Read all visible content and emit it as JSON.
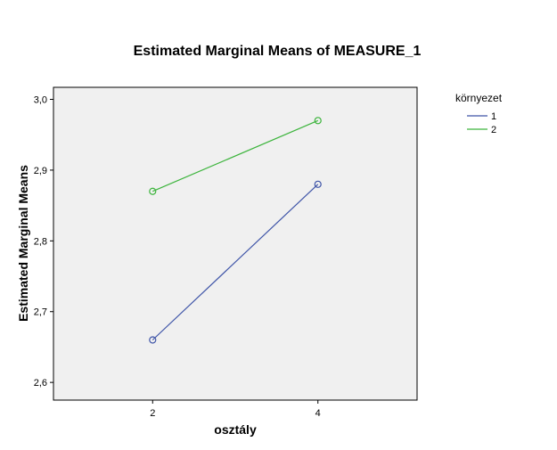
{
  "chart_data": {
    "type": "line",
    "title": "Estimated Marginal Means of MEASURE_1",
    "xlabel": "osztály",
    "ylabel": "Estimated Marginal Means",
    "categories": [
      "2",
      "4"
    ],
    "x": [
      2,
      4
    ],
    "xlim": [
      0.8,
      5.2
    ],
    "ylim": [
      2.575,
      3.017
    ],
    "yticks": [
      2.6,
      2.7,
      2.8,
      2.9,
      3.0
    ],
    "ytick_labels": [
      "2,6",
      "2,7",
      "2,8",
      "2,9",
      "3,0"
    ],
    "grid": false,
    "legend_title": "környezet",
    "legend_position": "right",
    "series": [
      {
        "name": "1",
        "color": "#3f55a8",
        "values": [
          2.66,
          2.88
        ]
      },
      {
        "name": "2",
        "color": "#3cb43c",
        "values": [
          2.87,
          2.97
        ]
      }
    ],
    "plot_background": "#f0f0f0"
  }
}
